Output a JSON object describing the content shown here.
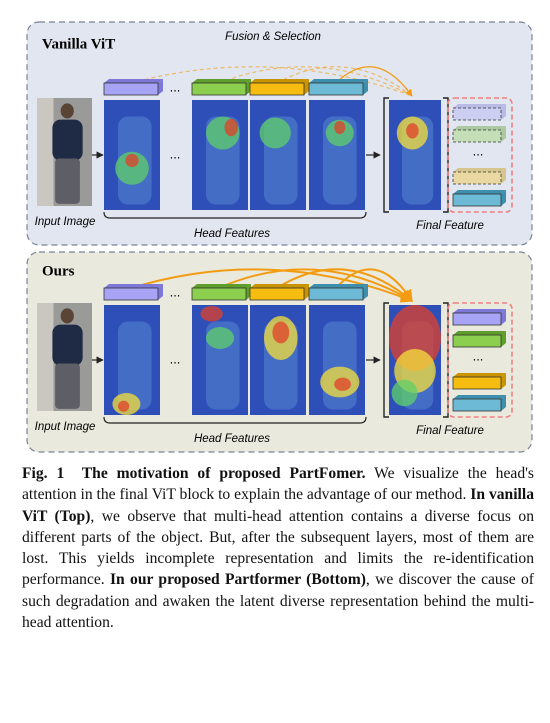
{
  "top": {
    "title": "Vanilla ViT",
    "fusion_label": "Fusion & Selection",
    "ellipsis": "...",
    "input_label": "Input Image",
    "head_label": "Head Features",
    "final_label": "Final Feature"
  },
  "bottom": {
    "title": "Ours",
    "ellipsis": "...",
    "input_label": "Input Image",
    "head_label": "Head Features",
    "final_label": "Final Feature"
  },
  "caption": {
    "runs": [
      {
        "text": "Fig. 1  The motivation of proposed PartFomer.",
        "bold": true
      },
      {
        "text": " We visualize the head's attention in the final ViT block to explain the advantage of our method. ",
        "bold": false
      },
      {
        "text": "In vanilla ViT (Top)",
        "bold": true
      },
      {
        "text": ", we observe that multi-head attention contains a diverse focus on different parts of the object. But, after the subsequent layers, most of them are lost. This yields incomplete representation and limits the re-identification performance. ",
        "bold": false
      },
      {
        "text": "In our proposed Partformer (Bottom)",
        "bold": true
      },
      {
        "text": ", we discover the cause of such degradation and awaken the latent diverse representation behind the multi-head attention.",
        "bold": false
      }
    ]
  }
}
